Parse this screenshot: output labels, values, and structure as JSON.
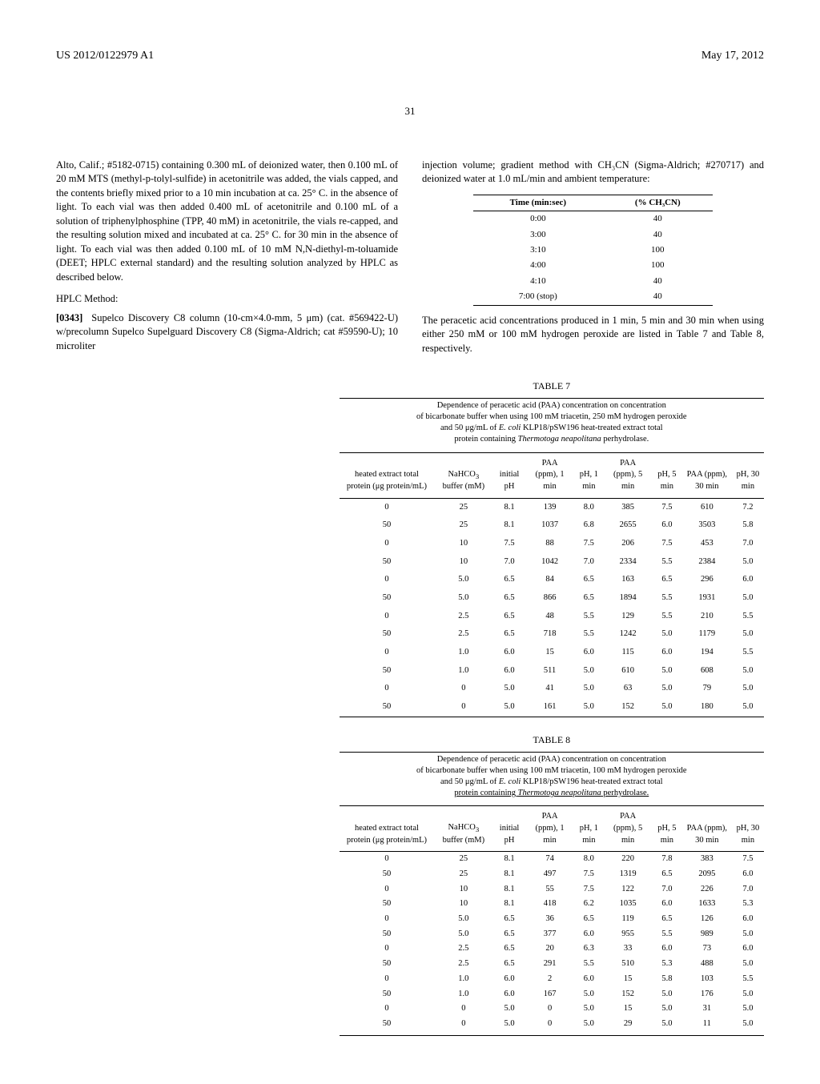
{
  "header": {
    "left": "US 2012/0122979 A1",
    "right": "May 17, 2012",
    "page": "31"
  },
  "left_col": {
    "p1": "Alto, Calif.; #5182-0715) containing 0.300 mL of deionized water, then 0.100 mL of 20 mM MTS (methyl-p-tolyl-sulfide) in acetonitrile was added, the vials capped, and the contents briefly mixed prior to a 10 min incubation at ca. 25° C. in the absence of light. To each vial was then added 0.400 mL of acetonitrile and 0.100 mL of a solution of triphenylphosphine (TPP, 40 mM) in acetonitrile, the vials re-capped, and the resulting solution mixed and incubated at ca. 25° C. for 30 min in the absence of light. To each vial was then added 0.100 mL of 10 mM N,N-diethyl-m-toluamide (DEET; HPLC external standard) and the resulting solution analyzed by HPLC as described below.",
    "hplc_hdr": "HPLC Method:",
    "p2_num": "[0343]",
    "p2": "Supelco Discovery C8 column (10-cm×4.0-mm, 5 μm) (cat. #569422-U) w/precolumn Supelco Supelguard Discovery C8 (Sigma-Aldrich; cat #59590-U); 10 microliter"
  },
  "right_col": {
    "p1": "injection volume; gradient method with CH₃CN (Sigma-Aldrich; #270717) and deionized water at 1.0 mL/min and ambient temperature:",
    "p2": "The peracetic acid concentrations produced in 1 min, 5 min and 30 min when using either 250 mM or 100 mM hydrogen peroxide are listed in Table 7 and Table 8, respectively."
  },
  "gradient_table": {
    "headers": [
      "Time (min:sec)",
      "(% CH₃CN)"
    ],
    "rows": [
      [
        "0:00",
        "40"
      ],
      [
        "3:00",
        "40"
      ],
      [
        "3:10",
        "100"
      ],
      [
        "4:00",
        "100"
      ],
      [
        "4:10",
        "40"
      ],
      [
        "7:00 (stop)",
        "40"
      ]
    ]
  },
  "table7": {
    "label": "TABLE 7",
    "caption_l1": "Dependence of peracetic acid (PAA) concentration on concentration",
    "caption_l2": "of bicarbonate buffer when using 100 mM triacetin, 250 mM hydrogen peroxide",
    "caption_l3": "and 50 μg/mL of E. coli KLP18/pSW196 heat-treated extract total",
    "caption_l4": "protein containing Thermotoga neapolitana perhydrolase.",
    "headers": [
      "heated extract total protein (μg protein/mL)",
      "NaHCO₃ buffer (mM)",
      "initial pH",
      "PAA (ppm), 1 min",
      "pH, 1 min",
      "PAA (ppm), 5 min",
      "pH, 5 min",
      "PAA (ppm), 30 min",
      "pH, 30 min"
    ],
    "rows": [
      [
        "0",
        "25",
        "8.1",
        "139",
        "8.0",
        "385",
        "7.5",
        "610",
        "7.2"
      ],
      [
        "50",
        "25",
        "8.1",
        "1037",
        "6.8",
        "2655",
        "6.0",
        "3503",
        "5.8"
      ],
      [
        "0",
        "10",
        "7.5",
        "88",
        "7.5",
        "206",
        "7.5",
        "453",
        "7.0"
      ],
      [
        "50",
        "10",
        "7.0",
        "1042",
        "7.0",
        "2334",
        "5.5",
        "2384",
        "5.0"
      ],
      [
        "0",
        "5.0",
        "6.5",
        "84",
        "6.5",
        "163",
        "6.5",
        "296",
        "6.0"
      ],
      [
        "50",
        "5.0",
        "6.5",
        "866",
        "6.5",
        "1894",
        "5.5",
        "1931",
        "5.0"
      ],
      [
        "0",
        "2.5",
        "6.5",
        "48",
        "5.5",
        "129",
        "5.5",
        "210",
        "5.5"
      ],
      [
        "50",
        "2.5",
        "6.5",
        "718",
        "5.5",
        "1242",
        "5.0",
        "1179",
        "5.0"
      ],
      [
        "0",
        "1.0",
        "6.0",
        "15",
        "6.0",
        "115",
        "6.0",
        "194",
        "5.5"
      ],
      [
        "50",
        "1.0",
        "6.0",
        "511",
        "5.0",
        "610",
        "5.0",
        "608",
        "5.0"
      ],
      [
        "0",
        "0",
        "5.0",
        "41",
        "5.0",
        "63",
        "5.0",
        "79",
        "5.0"
      ],
      [
        "50",
        "0",
        "5.0",
        "161",
        "5.0",
        "152",
        "5.0",
        "180",
        "5.0"
      ]
    ]
  },
  "table8": {
    "label": "TABLE 8",
    "caption_l1": "Dependence of peracetic acid (PAA) concentration on concentration",
    "caption_l2": "of bicarbonate buffer when using 100 mM triacetin, 100 mM hydrogen peroxide",
    "caption_l3": "and 50 μg/mL of E. coli KLP18/pSW196 heat-treated extract total",
    "caption_l4": "protein containing Thermotoga neapolitana perhydrolase.",
    "headers": [
      "heated extract total protein (μg protein/mL)",
      "NaHCO₃ buffer (mM)",
      "initial pH",
      "PAA (ppm), 1 min",
      "pH, 1 min",
      "PAA (ppm), 5 min",
      "pH, 5 min",
      "PAA (ppm), 30 min",
      "pH, 30 min"
    ],
    "rows": [
      [
        "0",
        "25",
        "8.1",
        "74",
        "8.0",
        "220",
        "7.8",
        "383",
        "7.5"
      ],
      [
        "50",
        "25",
        "8.1",
        "497",
        "7.5",
        "1319",
        "6.5",
        "2095",
        "6.0"
      ],
      [
        "0",
        "10",
        "8.1",
        "55",
        "7.5",
        "122",
        "7.0",
        "226",
        "7.0"
      ],
      [
        "50",
        "10",
        "8.1",
        "418",
        "6.2",
        "1035",
        "6.0",
        "1633",
        "5.3"
      ],
      [
        "0",
        "5.0",
        "6.5",
        "36",
        "6.5",
        "119",
        "6.5",
        "126",
        "6.0"
      ],
      [
        "50",
        "5.0",
        "6.5",
        "377",
        "6.0",
        "955",
        "5.5",
        "989",
        "5.0"
      ],
      [
        "0",
        "2.5",
        "6.5",
        "20",
        "6.3",
        "33",
        "6.0",
        "73",
        "6.0"
      ],
      [
        "50",
        "2.5",
        "6.5",
        "291",
        "5.5",
        "510",
        "5.3",
        "488",
        "5.0"
      ],
      [
        "0",
        "1.0",
        "6.0",
        "2",
        "6.0",
        "15",
        "5.8",
        "103",
        "5.5"
      ],
      [
        "50",
        "1.0",
        "6.0",
        "167",
        "5.0",
        "152",
        "5.0",
        "176",
        "5.0"
      ],
      [
        "0",
        "0",
        "5.0",
        "0",
        "5.0",
        "15",
        "5.0",
        "31",
        "5.0"
      ],
      [
        "50",
        "0",
        "5.0",
        "0",
        "5.0",
        "29",
        "5.0",
        "11",
        "5.0"
      ]
    ]
  }
}
